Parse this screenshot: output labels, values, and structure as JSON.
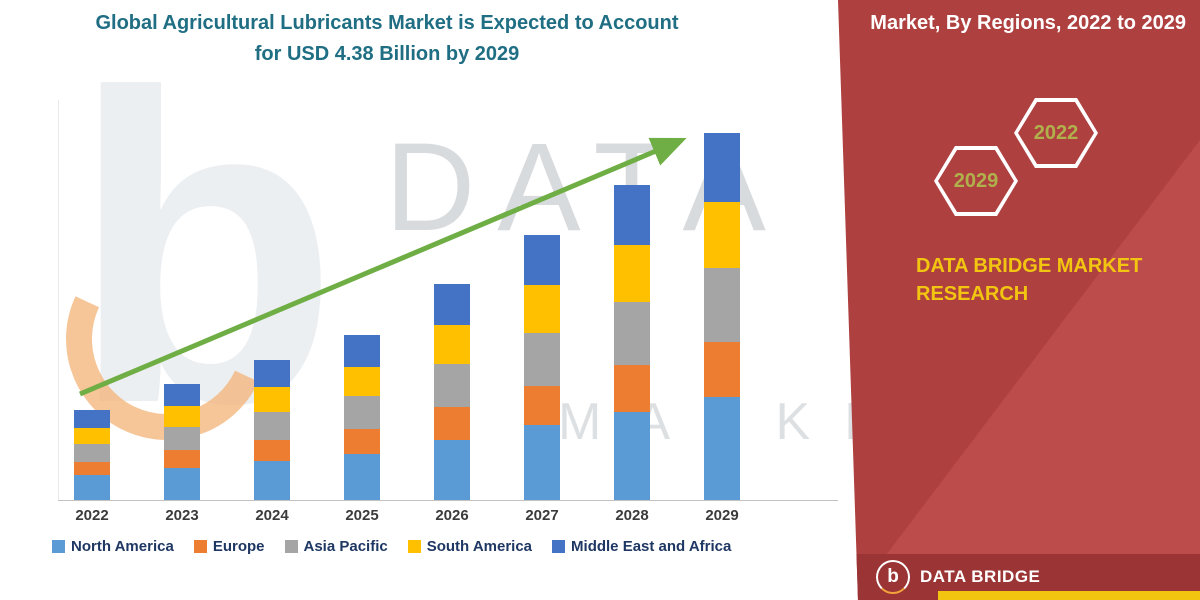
{
  "title": {
    "line1": "Global Agricultural Lubricants Market is Expected to Account",
    "line2": "for USD 4.38 Billion by 2029"
  },
  "sash": {
    "header": "Market, By Regions, 2022 to 2029",
    "hex_2022": "2022",
    "hex_2029": "2029",
    "brand_line1": "DATA BRIDGE MARKET",
    "brand_line2": "RESEARCH"
  },
  "footer": {
    "logo_letter": "b",
    "brand": "DATA BRIDGE"
  },
  "watermark": {
    "big_b": "b",
    "line1": "DATA BRID",
    "line2": "MARKET RE"
  },
  "theme": {
    "sash_red": "#AF4040",
    "sash_red_light": "#BC4B4B",
    "footer_red": "#9B3434",
    "accent_yellow": "#F2C511",
    "title_teal": "#1F6E83",
    "legend_ink": "#1F3763",
    "axis_gray": "#C2C2C2",
    "watermark_gray": "#D8DBDE",
    "arrow_green": "#6FAE44",
    "hex_text": "#B0B04C"
  },
  "chart_data": {
    "type": "bar",
    "stacked": true,
    "title": "Global Agricultural Lubricants Market is Expected to Account for USD 4.38 Billion by 2029",
    "unit": "USD Billion",
    "xlabel": "",
    "ylabel": "",
    "ylim": [
      0,
      4.6
    ],
    "grid": false,
    "y_axis_labels_visible": false,
    "legend_position": "bottom",
    "trend_arrow": true,
    "categories": [
      "2022",
      "2023",
      "2024",
      "2025",
      "2026",
      "2027",
      "2028",
      "2029"
    ],
    "series": [
      {
        "name": "North America",
        "color": "#5B9BD5",
        "values": [
          0.3,
          0.38,
          0.47,
          0.55,
          0.72,
          0.89,
          1.05,
          1.23
        ]
      },
      {
        "name": "Europe",
        "color": "#ED7D31",
        "values": [
          0.16,
          0.21,
          0.25,
          0.3,
          0.39,
          0.47,
          0.56,
          0.66
        ]
      },
      {
        "name": "Asia Pacific",
        "color": "#A5A5A5",
        "values": [
          0.21,
          0.27,
          0.33,
          0.39,
          0.51,
          0.63,
          0.75,
          0.88
        ]
      },
      {
        "name": "South America",
        "color": "#FFC000",
        "values": [
          0.19,
          0.25,
          0.3,
          0.35,
          0.46,
          0.57,
          0.68,
          0.79
        ]
      },
      {
        "name": "Middle East and Africa",
        "color": "#4472C4",
        "values": [
          0.21,
          0.26,
          0.32,
          0.38,
          0.49,
          0.6,
          0.72,
          0.82
        ]
      }
    ],
    "totals": [
      1.07,
      1.37,
      1.67,
      1.97,
      2.57,
      3.16,
      3.76,
      4.38
    ]
  }
}
